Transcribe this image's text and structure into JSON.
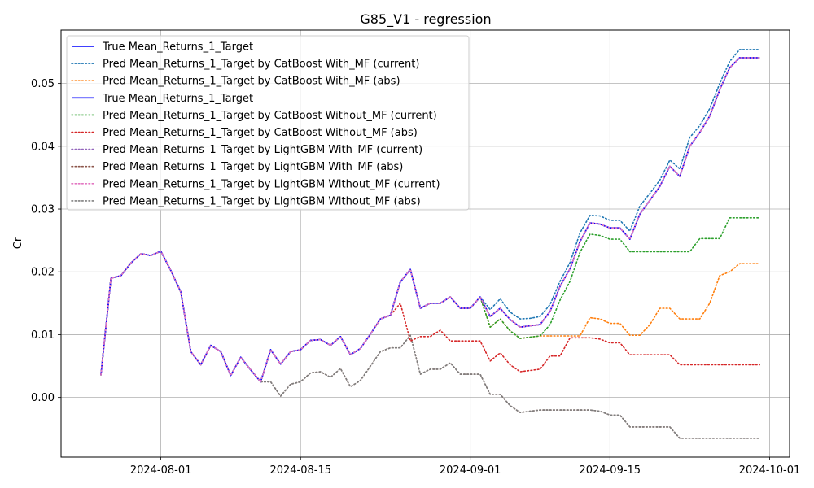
{
  "chart_data": {
    "type": "line",
    "title": "G85_V1 - regression",
    "xlabel": "",
    "ylabel": "Cr",
    "xlim": [
      "2024-07-22",
      "2024-10-03"
    ],
    "ylim": [
      -0.0095,
      0.0585
    ],
    "xticks": [
      "2024-08-01",
      "2024-08-15",
      "2024-09-01",
      "2024-09-15",
      "2024-10-01"
    ],
    "yticks": [
      0.0,
      0.01,
      0.02,
      0.03,
      0.04,
      0.05
    ],
    "ytick_labels": [
      "0.00",
      "0.01",
      "0.02",
      "0.03",
      "0.04",
      "0.05"
    ],
    "grid": true,
    "legend_position": "upper-left",
    "dates": [
      "2024-07-26",
      "2024-07-27",
      "2024-07-28",
      "2024-07-29",
      "2024-07-30",
      "2024-07-31",
      "2024-08-01",
      "2024-08-02",
      "2024-08-03",
      "2024-08-04",
      "2024-08-05",
      "2024-08-06",
      "2024-08-07",
      "2024-08-08",
      "2024-08-09",
      "2024-08-10",
      "2024-08-11",
      "2024-08-12",
      "2024-08-13",
      "2024-08-14",
      "2024-08-15",
      "2024-08-16",
      "2024-08-17",
      "2024-08-18",
      "2024-08-19",
      "2024-08-20",
      "2024-08-21",
      "2024-08-22",
      "2024-08-23",
      "2024-08-24",
      "2024-08-25",
      "2024-08-26",
      "2024-08-27",
      "2024-08-28",
      "2024-08-29",
      "2024-08-30",
      "2024-08-31",
      "2024-09-01",
      "2024-09-02",
      "2024-09-03",
      "2024-09-04",
      "2024-09-05",
      "2024-09-06",
      "2024-09-07",
      "2024-09-08",
      "2024-09-09",
      "2024-09-10",
      "2024-09-11",
      "2024-09-12",
      "2024-09-13",
      "2024-09-14",
      "2024-09-15",
      "2024-09-16",
      "2024-09-17",
      "2024-09-18",
      "2024-09-19",
      "2024-09-20",
      "2024-09-21",
      "2024-09-22",
      "2024-09-23",
      "2024-09-24",
      "2024-09-25",
      "2024-09-26",
      "2024-09-27",
      "2024-09-28",
      "2024-09-29",
      "2024-09-30"
    ],
    "series": [
      {
        "name": "True Mean_Returns_1_Target",
        "color": "#0000ff",
        "style": "solid",
        "values": [
          0.0036,
          0.019,
          0.0194,
          0.0214,
          0.0229,
          0.0226,
          0.0233,
          0.0202,
          0.0168,
          0.0073,
          0.0052,
          0.0083,
          0.0073,
          0.0035,
          0.0064,
          0.0044,
          0.0025,
          0.0076,
          0.0053,
          0.0073,
          0.0076,
          0.0091,
          0.0092,
          0.0083,
          0.0097,
          0.0068,
          0.0078,
          0.0101,
          0.0125,
          0.0131,
          0.0184,
          0.0204,
          0.0142,
          0.015,
          0.015,
          0.016,
          0.0142,
          0.0142,
          0.016,
          0.0129,
          0.0142,
          0.0124,
          0.0112,
          0.0114,
          0.0116,
          0.0137,
          0.0177,
          0.0205,
          0.0248,
          0.0278,
          0.0276,
          0.027,
          0.027,
          0.0252,
          0.0292,
          0.0314,
          0.0336,
          0.0368,
          0.0352,
          0.04,
          0.0422,
          0.0448,
          0.049,
          0.0525,
          0.0541,
          0.0541,
          0.0541
        ]
      },
      {
        "name": "Pred Mean_Returns_1_Target by CatBoost With_MF (current)",
        "color": "#1f77b4",
        "style": "dotted",
        "values": [
          0.0036,
          0.019,
          0.0194,
          0.0214,
          0.0229,
          0.0226,
          0.0233,
          0.0202,
          0.0168,
          0.0073,
          0.0052,
          0.0083,
          0.0073,
          0.0035,
          0.0064,
          0.0044,
          0.0025,
          0.0076,
          0.0053,
          0.0073,
          0.0076,
          0.0091,
          0.0092,
          0.0083,
          0.0097,
          0.0068,
          0.0078,
          0.0101,
          0.0125,
          0.0131,
          0.0184,
          0.0204,
          0.0142,
          0.015,
          0.015,
          0.016,
          0.0142,
          0.0142,
          0.016,
          0.014,
          0.0157,
          0.0136,
          0.0125,
          0.0126,
          0.0129,
          0.0148,
          0.0185,
          0.0215,
          0.0262,
          0.029,
          0.0289,
          0.0282,
          0.0282,
          0.0265,
          0.0305,
          0.0325,
          0.0346,
          0.0378,
          0.0364,
          0.0414,
          0.0433,
          0.046,
          0.05,
          0.0535,
          0.0554,
          0.0554,
          0.0554
        ]
      },
      {
        "name": "Pred Mean_Returns_1_Target by CatBoost With_MF (abs)",
        "color": "#ff7f0e",
        "style": "dotted",
        "values": [
          0.0036,
          0.019,
          0.0194,
          0.0214,
          0.0229,
          0.0226,
          0.0233,
          0.0202,
          0.0168,
          0.0073,
          0.0052,
          0.0083,
          0.0073,
          0.0035,
          0.0064,
          0.0044,
          0.0025,
          0.0076,
          0.0053,
          0.0073,
          0.0076,
          0.0091,
          0.0092,
          0.0083,
          0.0097,
          0.0068,
          0.0078,
          0.0101,
          0.0125,
          0.0131,
          0.0184,
          0.0204,
          0.0142,
          0.015,
          0.015,
          0.016,
          0.0142,
          0.0142,
          0.016,
          0.0112,
          0.0125,
          0.0106,
          0.0094,
          0.0096,
          0.0098,
          0.0098,
          0.0098,
          0.0098,
          0.0098,
          0.0127,
          0.0125,
          0.0118,
          0.0118,
          0.0099,
          0.0099,
          0.0116,
          0.0142,
          0.0142,
          0.0125,
          0.0125,
          0.0125,
          0.015,
          0.0194,
          0.02,
          0.0213,
          0.0213,
          0.0213
        ]
      },
      {
        "name": "True Mean_Returns_1_Target",
        "color": "#0000ff",
        "style": "solid",
        "values": [
          0.0036,
          0.019,
          0.0194,
          0.0214,
          0.0229,
          0.0226,
          0.0233,
          0.0202,
          0.0168,
          0.0073,
          0.0052,
          0.0083,
          0.0073,
          0.0035,
          0.0064,
          0.0044,
          0.0025,
          0.0076,
          0.0053,
          0.0073,
          0.0076,
          0.0091,
          0.0092,
          0.0083,
          0.0097,
          0.0068,
          0.0078,
          0.0101,
          0.0125,
          0.0131,
          0.0184,
          0.0204,
          0.0142,
          0.015,
          0.015,
          0.016,
          0.0142,
          0.0142,
          0.016,
          0.0129,
          0.0142,
          0.0124,
          0.0112,
          0.0114,
          0.0116,
          0.0137,
          0.0177,
          0.0205,
          0.0248,
          0.0278,
          0.0276,
          0.027,
          0.027,
          0.0252,
          0.0292,
          0.0314,
          0.0336,
          0.0368,
          0.0352,
          0.04,
          0.0422,
          0.0448,
          0.049,
          0.0525,
          0.0541,
          0.0541,
          0.0541
        ]
      },
      {
        "name": "Pred Mean_Returns_1_Target by CatBoost Without_MF (current)",
        "color": "#2ca02c",
        "style": "dotted",
        "values": [
          0.0036,
          0.019,
          0.0194,
          0.0214,
          0.0229,
          0.0226,
          0.0233,
          0.0202,
          0.0168,
          0.0073,
          0.0052,
          0.0083,
          0.0073,
          0.0035,
          0.0064,
          0.0044,
          0.0025,
          0.0076,
          0.0053,
          0.0073,
          0.0076,
          0.0091,
          0.0092,
          0.0083,
          0.0097,
          0.0068,
          0.0078,
          0.0101,
          0.0125,
          0.0131,
          0.0184,
          0.0204,
          0.0142,
          0.015,
          0.015,
          0.016,
          0.0142,
          0.0142,
          0.016,
          0.0112,
          0.0125,
          0.0106,
          0.0094,
          0.0096,
          0.0098,
          0.0116,
          0.0155,
          0.0185,
          0.0231,
          0.026,
          0.0258,
          0.0252,
          0.0252,
          0.0232,
          0.0232,
          0.0232,
          0.0232,
          0.0232,
          0.0232,
          0.0232,
          0.0253,
          0.0253,
          0.0253,
          0.0286,
          0.0286,
          0.0286,
          0.0286
        ]
      },
      {
        "name": "Pred Mean_Returns_1_Target by CatBoost Without_MF (abs)",
        "color": "#d62728",
        "style": "dotted",
        "values": [
          0.0036,
          0.019,
          0.0194,
          0.0214,
          0.0229,
          0.0226,
          0.0233,
          0.0202,
          0.0168,
          0.0073,
          0.0052,
          0.0083,
          0.0073,
          0.0035,
          0.0064,
          0.0044,
          0.0025,
          0.0076,
          0.0053,
          0.0073,
          0.0076,
          0.0091,
          0.0092,
          0.0083,
          0.0097,
          0.0068,
          0.0078,
          0.0101,
          0.0125,
          0.0131,
          0.015,
          0.009,
          0.0097,
          0.0097,
          0.0107,
          0.009,
          0.009,
          0.009,
          0.009,
          0.0058,
          0.0071,
          0.0052,
          0.0041,
          0.0043,
          0.0045,
          0.0066,
          0.0066,
          0.0095,
          0.0095,
          0.0095,
          0.0093,
          0.0087,
          0.0087,
          0.0068,
          0.0068,
          0.0068,
          0.0068,
          0.0068,
          0.0052,
          0.0052,
          0.0052,
          0.0052,
          0.0052,
          0.0052,
          0.0052,
          0.0052,
          0.0052
        ]
      },
      {
        "name": "Pred Mean_Returns_1_Target by LightGBM With_MF (current)",
        "color": "#9467bd",
        "style": "dotted",
        "values": [
          0.0036,
          0.019,
          0.0194,
          0.0214,
          0.0229,
          0.0226,
          0.0233,
          0.0202,
          0.0168,
          0.0073,
          0.0052,
          0.0083,
          0.0073,
          0.0035,
          0.0064,
          0.0044,
          0.0025,
          0.0076,
          0.0053,
          0.0073,
          0.0076,
          0.0091,
          0.0092,
          0.0083,
          0.0097,
          0.0068,
          0.0078,
          0.0101,
          0.0125,
          0.0131,
          0.0184,
          0.0204,
          0.0142,
          0.015,
          0.015,
          0.016,
          0.0142,
          0.0142,
          0.016,
          0.0129,
          0.0142,
          0.0124,
          0.0112,
          0.0114,
          0.0116,
          0.0137,
          0.0177,
          0.0205,
          0.0248,
          0.0278,
          0.0276,
          0.027,
          0.027,
          0.0252,
          0.0292,
          0.0314,
          0.0336,
          0.0368,
          0.0352,
          0.04,
          0.0422,
          0.0448,
          0.049,
          0.0525,
          0.0541,
          0.0541,
          0.0541
        ]
      },
      {
        "name": "Pred Mean_Returns_1_Target by LightGBM With_MF (abs)",
        "color": "#8c564b",
        "style": "dotted",
        "values": [
          0.0036,
          0.019,
          0.0194,
          0.0214,
          0.0229,
          0.0226,
          0.0233,
          0.0202,
          0.0168,
          0.0073,
          0.0052,
          0.0083,
          0.0073,
          0.0035,
          0.0064,
          0.0044,
          0.0025,
          0.0025,
          0.0002,
          0.0021,
          0.0025,
          0.0039,
          0.0041,
          0.0032,
          0.0046,
          0.0017,
          0.0027,
          0.005,
          0.0073,
          0.0079,
          0.0079,
          0.0099,
          0.0037,
          0.0045,
          0.0045,
          0.0055,
          0.0037,
          0.0037,
          0.0037,
          0.0005,
          0.0005,
          -0.0013,
          -0.0024,
          -0.0022,
          -0.002,
          -0.002,
          -0.002,
          -0.002,
          -0.002,
          -0.002,
          -0.0022,
          -0.0028,
          -0.0028,
          -0.0047,
          -0.0047,
          -0.0047,
          -0.0047,
          -0.0047,
          -0.0065,
          -0.0065,
          -0.0065,
          -0.0065,
          -0.0065,
          -0.0065,
          -0.0065,
          -0.0065,
          -0.0065
        ]
      },
      {
        "name": "Pred Mean_Returns_1_Target by LightGBM Without_MF (current)",
        "color": "#e377c2",
        "style": "dotted",
        "values": [
          0.0036,
          0.019,
          0.0194,
          0.0214,
          0.0229,
          0.0226,
          0.0233,
          0.0202,
          0.0168,
          0.0073,
          0.0052,
          0.0083,
          0.0073,
          0.0035,
          0.0064,
          0.0044,
          0.0025,
          0.0076,
          0.0053,
          0.0073,
          0.0076,
          0.0091,
          0.0092,
          0.0083,
          0.0097,
          0.0068,
          0.0078,
          0.0101,
          0.0125,
          0.0131,
          0.0184,
          0.0204,
          0.0142,
          0.015,
          0.015,
          0.016,
          0.0142,
          0.0142,
          0.016,
          0.0129,
          0.0142,
          0.0124,
          0.0112,
          0.0114,
          0.0116,
          0.0137,
          0.0177,
          0.0205,
          0.0248,
          0.0278,
          0.0276,
          0.027,
          0.027,
          0.0252,
          0.0292,
          0.0314,
          0.0336,
          0.0368,
          0.0352,
          0.04,
          0.0422,
          0.0448,
          0.049,
          0.0525,
          0.0541,
          0.0541,
          0.0541
        ]
      },
      {
        "name": "Pred Mean_Returns_1_Target by LightGBM Without_MF (abs)",
        "color": "#7f7f7f",
        "style": "dotted",
        "values": [
          0.0036,
          0.019,
          0.0194,
          0.0214,
          0.0229,
          0.0226,
          0.0233,
          0.0202,
          0.0168,
          0.0073,
          0.0052,
          0.0083,
          0.0073,
          0.0035,
          0.0064,
          0.0044,
          0.0025,
          0.0025,
          0.0002,
          0.0021,
          0.0025,
          0.0039,
          0.0041,
          0.0032,
          0.0046,
          0.0017,
          0.0027,
          0.005,
          0.0073,
          0.0079,
          0.0079,
          0.0099,
          0.0037,
          0.0045,
          0.0045,
          0.0055,
          0.0037,
          0.0037,
          0.0037,
          0.0005,
          0.0005,
          -0.0013,
          -0.0024,
          -0.0022,
          -0.002,
          -0.002,
          -0.002,
          -0.002,
          -0.002,
          -0.002,
          -0.0022,
          -0.0028,
          -0.0028,
          -0.0047,
          -0.0047,
          -0.0047,
          -0.0047,
          -0.0047,
          -0.0065,
          -0.0065,
          -0.0065,
          -0.0065,
          -0.0065,
          -0.0065,
          -0.0065,
          -0.0065,
          -0.0065
        ]
      }
    ],
    "draw_order": [
      7,
      9,
      5,
      2,
      4,
      1,
      0,
      3,
      6,
      8
    ]
  }
}
